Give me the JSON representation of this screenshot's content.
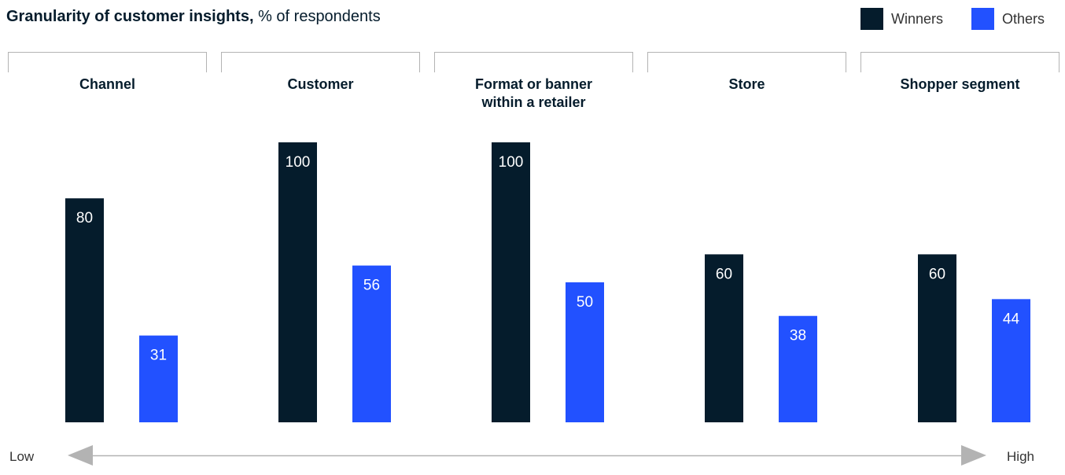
{
  "chart_data": {
    "type": "bar",
    "title": "Granularity of customer insights,",
    "subtitle": "% of respondents",
    "categories": [
      [
        "Channel"
      ],
      [
        "Customer"
      ],
      [
        "Format or banner",
        "within a retailer"
      ],
      [
        "Store"
      ],
      [
        "Shopper segment"
      ]
    ],
    "series": [
      {
        "name": "Winners",
        "color": "#051c2c",
        "values": [
          80,
          100,
          100,
          60,
          60
        ]
      },
      {
        "name": "Others",
        "color": "#2251ff",
        "values": [
          31,
          56,
          50,
          38,
          44
        ]
      }
    ],
    "ylim": [
      0,
      100
    ],
    "axis": {
      "low_label": "Low",
      "high_label": "High",
      "color": "#b3b3b3"
    },
    "grid": false,
    "legend_position": "top-right"
  }
}
